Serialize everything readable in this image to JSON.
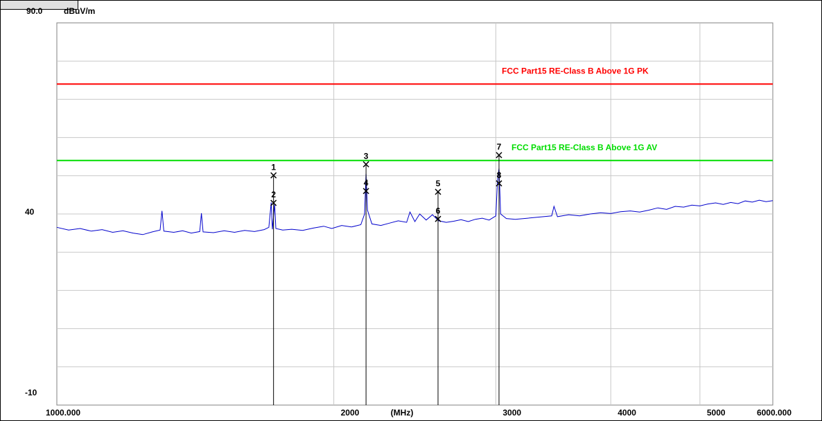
{
  "chart_data": {
    "type": "line",
    "y_unit": "dBuV/m",
    "x_unit": "(MHz)",
    "log_x": true,
    "xlim": [
      1000,
      6000
    ],
    "ylim": [
      -10,
      90
    ],
    "xticks": [
      {
        "value": 1000,
        "label": "1000.000"
      },
      2000,
      3000,
      4000,
      5000,
      {
        "value": 6000,
        "label": "6000.000"
      }
    ],
    "yticks": [
      {
        "value": 90,
        "label": "90.0"
      },
      40,
      -10
    ],
    "xgrid": [
      2000,
      3000,
      4000,
      5000
    ],
    "ygrid": [
      0,
      10,
      20,
      30,
      40,
      50,
      60,
      70,
      80
    ],
    "limits": [
      {
        "name": "FCC Part15 RE-Class B Above 1G PK",
        "color": "#ff0000",
        "value": 74
      },
      {
        "name": "FCC Part15 RE-Class B Above 1G AV",
        "color": "#00dd00",
        "value": 54
      }
    ],
    "series": [
      {
        "color": "#0000cc",
        "x": [
          1000,
          1030,
          1060,
          1090,
          1120,
          1150,
          1180,
          1210,
          1240,
          1270,
          1295,
          1301,
          1307,
          1340,
          1370,
          1400,
          1430,
          1436,
          1442,
          1480,
          1520,
          1560,
          1600,
          1640,
          1680,
          1700,
          1710,
          1715,
          1725,
          1730,
          1760,
          1800,
          1850,
          1900,
          1950,
          1990,
          2040,
          2090,
          2140,
          2160,
          2168,
          2176,
          2200,
          2250,
          2300,
          2350,
          2400,
          2420,
          2450,
          2480,
          2520,
          2560,
          2600,
          2650,
          2700,
          2750,
          2800,
          2850,
          2900,
          2950,
          3000,
          3012,
          3024,
          3036,
          3080,
          3150,
          3250,
          3350,
          3450,
          3470,
          3500,
          3600,
          3700,
          3800,
          3900,
          4000,
          4100,
          4200,
          4300,
          4400,
          4500,
          4600,
          4700,
          4800,
          4900,
          5000,
          5100,
          5200,
          5300,
          5400,
          5500,
          5600,
          5700,
          5800,
          5900,
          6000
        ],
        "values": [
          36.5,
          35.8,
          36.2,
          35.5,
          35.9,
          35.2,
          35.6,
          35.0,
          34.6,
          35.3,
          35.8,
          40.8,
          35.5,
          35.2,
          35.6,
          35.0,
          35.4,
          40.2,
          35.3,
          35.1,
          35.6,
          35.2,
          35.7,
          35.4,
          35.9,
          36.5,
          43.0,
          36.0,
          42.5,
          36.2,
          35.8,
          36.0,
          35.7,
          36.3,
          36.8,
          36.2,
          37.0,
          36.6,
          37.2,
          40,
          50.5,
          41,
          37.4,
          37.0,
          37.6,
          38.2,
          37.8,
          40.5,
          38.0,
          40.0,
          38.4,
          39.8,
          38.2,
          37.8,
          38.1,
          38.5,
          38.0,
          38.6,
          38.9,
          38.4,
          39.5,
          48.5,
          52.0,
          40,
          38.8,
          38.6,
          38.9,
          39.2,
          39.5,
          42.0,
          39.3,
          39.8,
          39.5,
          40.0,
          40.3,
          40.1,
          40.6,
          40.8,
          40.5,
          41.0,
          41.6,
          41.2,
          42.0,
          41.8,
          42.3,
          42.1,
          42.6,
          42.9,
          42.5,
          43.0,
          42.7,
          43.4,
          43.1,
          43.6,
          43.2,
          43.5
        ]
      }
    ],
    "markers": [
      {
        "label": "1",
        "x": 1720,
        "y": 50.1
      },
      {
        "label": "2",
        "x": 1720,
        "y": 42.9
      },
      {
        "label": "3",
        "x": 2168,
        "y": 53.0
      },
      {
        "label": "4",
        "x": 2168,
        "y": 46.0
      },
      {
        "label": "5",
        "x": 2596,
        "y": 45.8
      },
      {
        "label": "6",
        "x": 2596,
        "y": 38.7
      },
      {
        "label": "7",
        "x": 3024,
        "y": 55.4
      },
      {
        "label": "8",
        "x": 3024,
        "y": 48.0
      }
    ]
  }
}
